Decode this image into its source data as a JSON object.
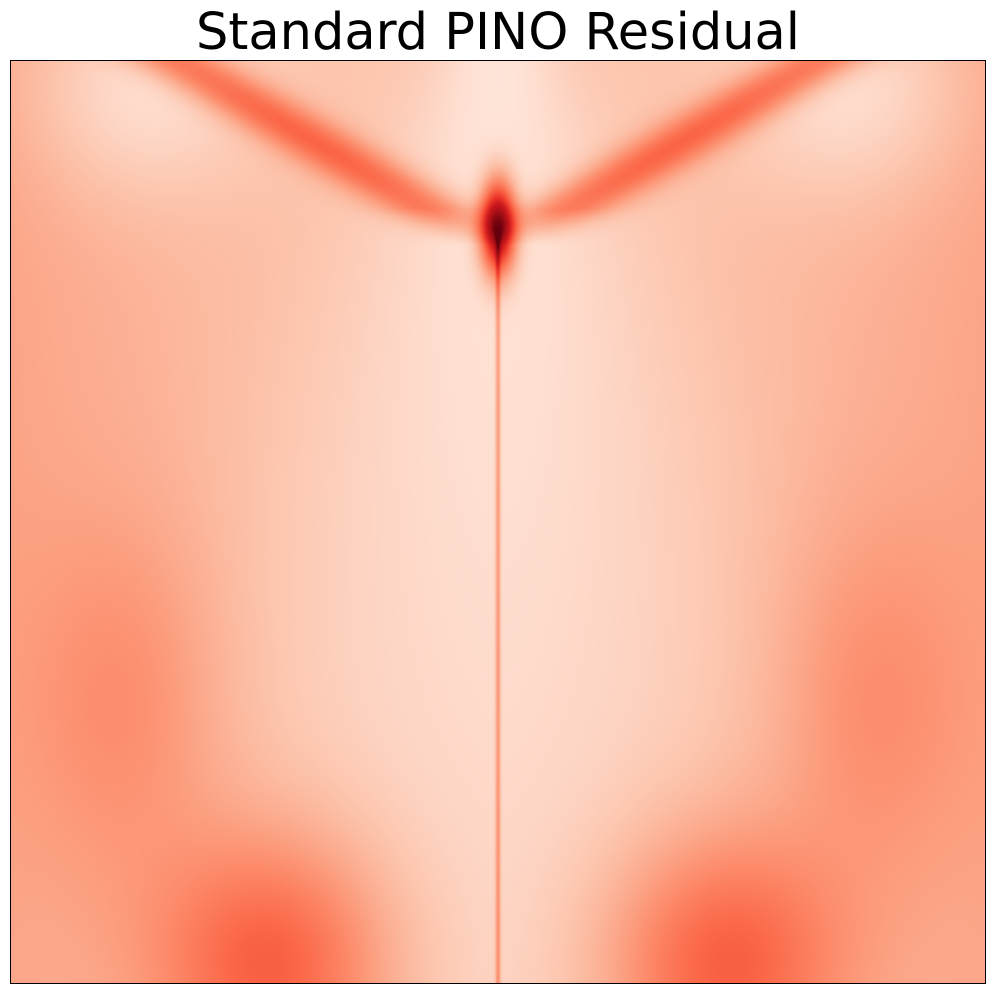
{
  "chart_data": {
    "type": "heatmap",
    "title": "Standard PINO Residual",
    "xlabel": "",
    "ylabel": "",
    "ticks_visible": false,
    "colormap": "Reds",
    "colormap_stops": [
      "#fff5f0",
      "#fee0d2",
      "#fcbba1",
      "#fc9272",
      "#fb6a4a",
      "#ef3b2c",
      "#cb181d",
      "#a50f15",
      "#67000d"
    ],
    "colorbar": false,
    "features": {
      "peak": {
        "x": 0.5,
        "y": 0.82,
        "value": 1.0
      },
      "symmetry": "mirror about x = 0.5",
      "center_line": "thin vertical streak at x = 0.5 below the peak",
      "bottom_lobes": "two moderate maxima near the bottom edge"
    }
  },
  "colors": {
    "frame": "#000000",
    "background": "#ffffff"
  }
}
